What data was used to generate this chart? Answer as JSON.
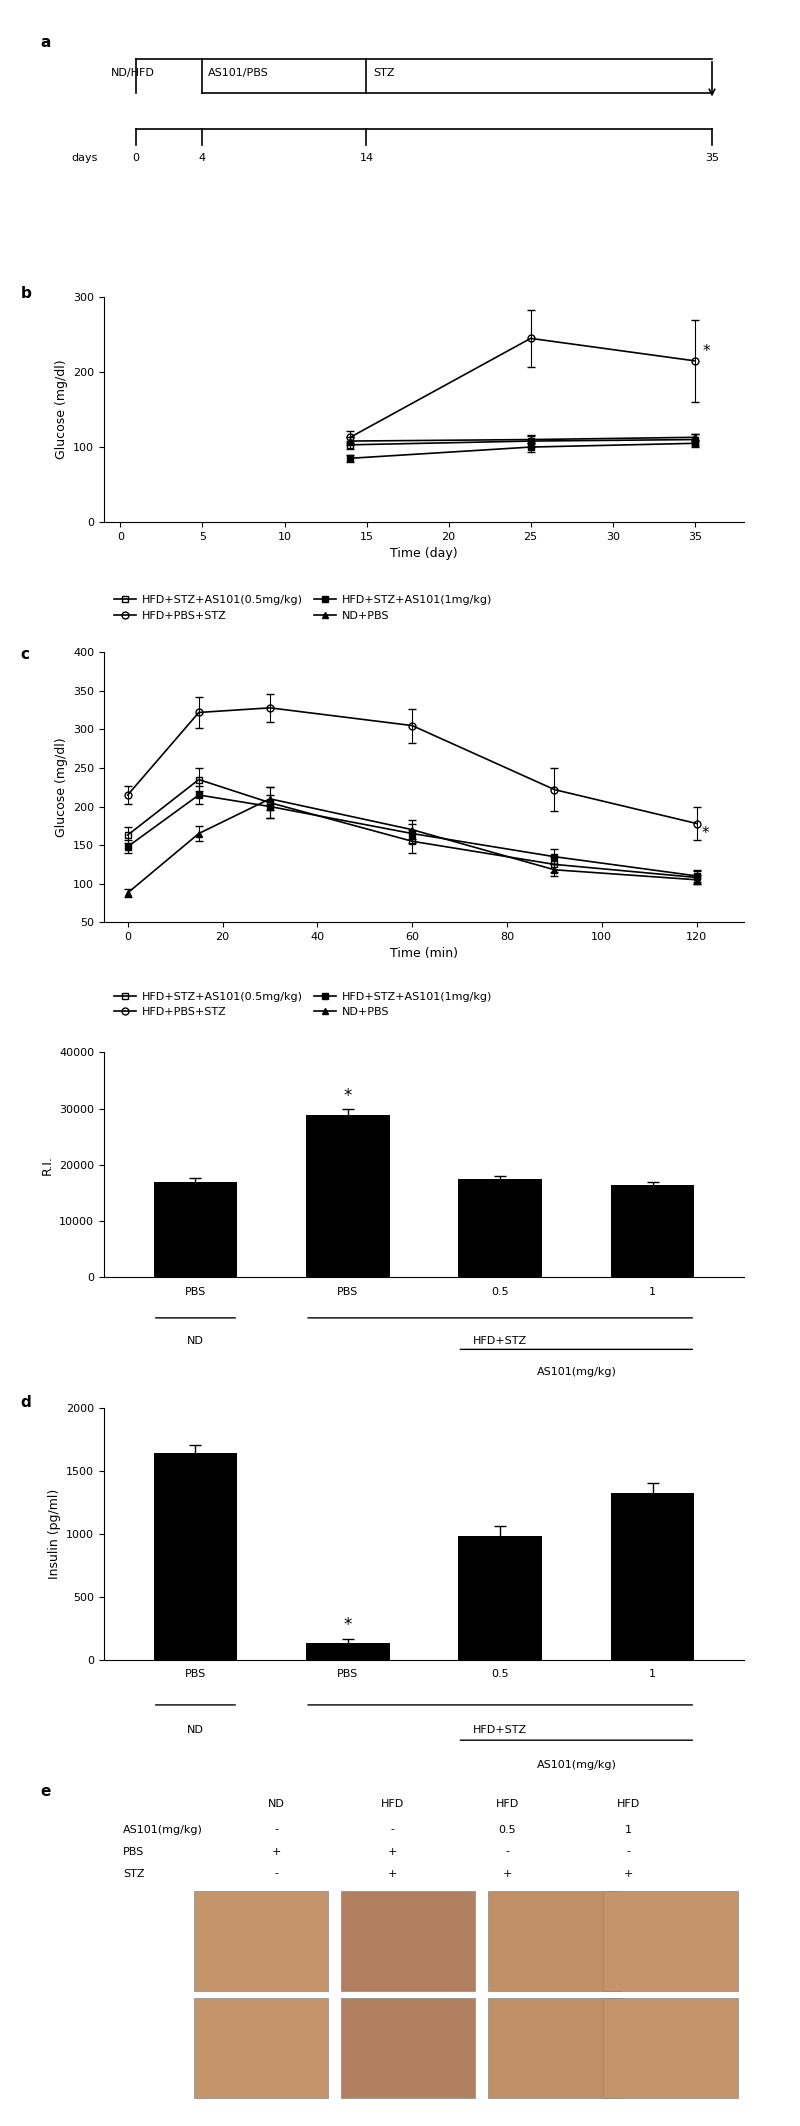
{
  "panel_a": {
    "timeline_days": [
      0,
      4,
      14,
      35
    ],
    "labels": [
      "ND/HFD",
      "AS101/PBS",
      "STZ"
    ],
    "label_days": [
      0,
      4,
      14
    ],
    "arrow_day": 35
  },
  "panel_b": {
    "xlabel": "Time (day)",
    "ylabel": "Glucose (mg/dl)",
    "ylim": [
      0,
      300
    ],
    "yticks": [
      0,
      100,
      200,
      300
    ],
    "xlim": [
      -1,
      38
    ],
    "xticks": [
      0,
      5,
      10,
      15,
      20,
      25,
      30,
      35
    ],
    "series": {
      "HFD+STZ+AS101_0.5": {
        "x": [
          14,
          25,
          35
        ],
        "y": [
          103,
          108,
          110
        ],
        "yerr": [
          5,
          8,
          7
        ],
        "marker": "s",
        "fillstyle": "none",
        "color": "black",
        "linestyle": "-"
      },
      "HFD+STZ+AS101_1": {
        "x": [
          14,
          25,
          35
        ],
        "y": [
          85,
          100,
          105
        ],
        "yerr": [
          5,
          6,
          5
        ],
        "marker": "s",
        "fillstyle": "full",
        "color": "black",
        "linestyle": "-"
      },
      "HFD+PBS+STZ": {
        "x": [
          14,
          25,
          35
        ],
        "y": [
          113,
          245,
          215
        ],
        "yerr": [
          8,
          38,
          55
        ],
        "marker": "o",
        "fillstyle": "none",
        "color": "black",
        "linestyle": "-"
      },
      "ND+PBS": {
        "x": [
          14,
          25,
          35
        ],
        "y": [
          108,
          110,
          113
        ],
        "yerr": [
          5,
          5,
          5
        ],
        "marker": "^",
        "fillstyle": "full",
        "color": "black",
        "linestyle": "-"
      }
    },
    "star_x": 35,
    "star_y": 215,
    "legend": [
      {
        "label": "HFD+STZ+AS101(0.5mg/kg)",
        "marker": "s",
        "fillstyle": "none"
      },
      {
        "label": "HFD+PBS+STZ",
        "marker": "o",
        "fillstyle": "none"
      },
      {
        "label": "HFD+STZ+AS101(1mg/kg)",
        "marker": "s",
        "fillstyle": "full"
      },
      {
        "label": "ND+PBS",
        "marker": "^",
        "fillstyle": "full"
      }
    ]
  },
  "panel_c": {
    "xlabel": "Time (min)",
    "ylabel": "Glucose (mg/dl)",
    "ylim": [
      50,
      400
    ],
    "yticks": [
      50,
      100,
      150,
      200,
      250,
      300,
      350,
      400
    ],
    "xlim": [
      -5,
      130
    ],
    "xticks": [
      0,
      20,
      40,
      60,
      80,
      100,
      120
    ],
    "series": {
      "HFD+STZ+AS101_0.5": {
        "x": [
          0,
          15,
          30,
          60,
          90,
          120
        ],
        "y": [
          163,
          235,
          205,
          155,
          125,
          108
        ],
        "yerr": [
          10,
          15,
          20,
          15,
          10,
          8
        ],
        "marker": "s",
        "fillstyle": "none",
        "color": "black",
        "linestyle": "-"
      },
      "HFD+STZ+AS101_1": {
        "x": [
          0,
          15,
          30,
          60,
          90,
          120
        ],
        "y": [
          148,
          215,
          200,
          165,
          135,
          110
        ],
        "yerr": [
          8,
          12,
          15,
          12,
          10,
          8
        ],
        "marker": "s",
        "fillstyle": "full",
        "color": "black",
        "linestyle": "-"
      },
      "HFD+PBS+STZ": {
        "x": [
          0,
          15,
          30,
          60,
          90,
          120
        ],
        "y": [
          215,
          322,
          328,
          305,
          222,
          178
        ],
        "yerr": [
          12,
          20,
          18,
          22,
          28,
          22
        ],
        "marker": "o",
        "fillstyle": "none",
        "color": "black",
        "linestyle": "-"
      },
      "ND+PBS": {
        "x": [
          0,
          15,
          30,
          60,
          90,
          120
        ],
        "y": [
          88,
          165,
          210,
          170,
          118,
          105
        ],
        "yerr": [
          5,
          10,
          15,
          12,
          8,
          6
        ],
        "marker": "^",
        "fillstyle": "full",
        "color": "black",
        "linestyle": "-"
      }
    },
    "star_x": 120,
    "star_y": 178,
    "legend": [
      {
        "label": "HFD+STZ+AS101(0.5mg/kg)",
        "marker": "s",
        "fillstyle": "none"
      },
      {
        "label": "HFD+PBS+STZ",
        "marker": "o",
        "fillstyle": "none"
      },
      {
        "label": "HFD+STZ+AS101(1mg/kg)",
        "marker": "s",
        "fillstyle": "full"
      },
      {
        "label": "ND+PBS",
        "marker": "^",
        "fillstyle": "full"
      }
    ]
  },
  "panel_d_ri": {
    "ylabel": "R.I.",
    "ylim": [
      0,
      40000
    ],
    "yticks": [
      0,
      10000,
      20000,
      30000,
      40000
    ],
    "categories": [
      "PBS",
      "PBS",
      "0.5",
      "1"
    ],
    "values": [
      17000,
      28800,
      17500,
      16500
    ],
    "errors": [
      600,
      1200,
      600,
      400
    ],
    "star_bar": 1,
    "as101_label": "AS101(mg/kg)"
  },
  "panel_d_insulin": {
    "ylabel": "Insulin (pg/ml)",
    "ylim": [
      0,
      2000
    ],
    "yticks": [
      0,
      500,
      1000,
      1500,
      2000
    ],
    "categories": [
      "PBS",
      "PBS",
      "0.5",
      "1"
    ],
    "values": [
      1640,
      130,
      980,
      1320
    ],
    "errors": [
      60,
      30,
      80,
      80
    ],
    "star_bar": 1,
    "as101_label": "AS101(mg/kg)"
  },
  "panel_e": {
    "headers": [
      "ND",
      "HFD",
      "HFD",
      "HFD"
    ],
    "row_labels": [
      "AS101(mg/kg)",
      "PBS",
      "STZ"
    ],
    "row_values": [
      [
        "-",
        "-",
        "0.5",
        "1"
      ],
      [
        "+",
        "+",
        "-",
        "-"
      ],
      [
        "-",
        "+",
        "+",
        "+"
      ]
    ],
    "img_colors": [
      [
        "#c8a882",
        "#b09060",
        "#c09070",
        "#c8a882"
      ],
      [
        "#c8a882",
        "#b09060",
        "#c09070",
        "#c8a882"
      ]
    ]
  },
  "colors": {
    "black": "#000000",
    "white": "#ffffff",
    "background": "#ffffff"
  },
  "fontsize": {
    "panel_label": 11,
    "axis_label": 9,
    "tick_label": 8,
    "legend": 8,
    "annotation": 10
  }
}
